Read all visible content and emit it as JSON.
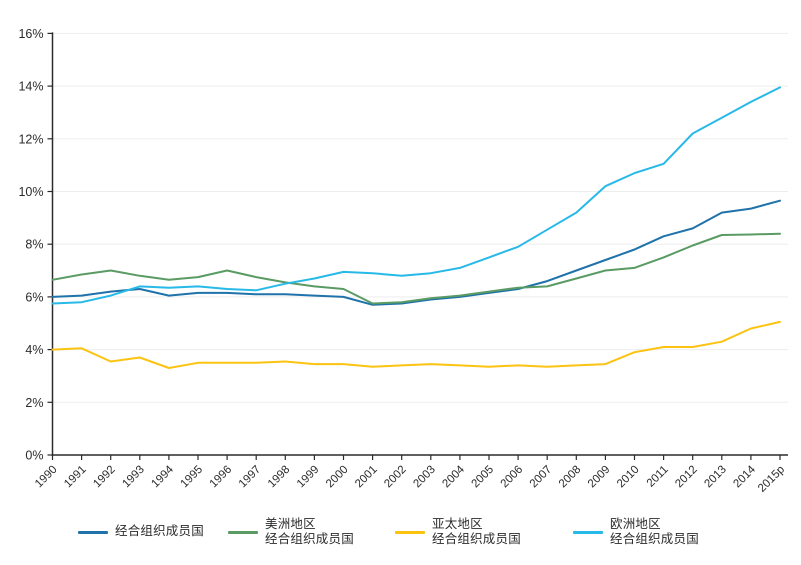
{
  "chart_data": {
    "type": "line",
    "title": "",
    "xlabel": "",
    "ylabel": "",
    "x": [
      "1990",
      "1991",
      "1992",
      "1993",
      "1994",
      "1995",
      "1996",
      "1997",
      "1998",
      "1999",
      "2000",
      "2001",
      "2002",
      "2003",
      "2004",
      "2005",
      "2006",
      "2007",
      "2008",
      "2009",
      "2010",
      "2011",
      "2012",
      "2013",
      "2014",
      "2015p"
    ],
    "ylim": [
      0,
      16
    ],
    "ytick_step": 2,
    "ytick_suffix": "%",
    "grid": "horizontal",
    "legend_position": "bottom",
    "axis_color": "#2b2b2b",
    "grid_color": "#ededed",
    "series": [
      {
        "name": "经合组织成员国",
        "color": "#1F72AA",
        "values": [
          6.0,
          6.05,
          6.2,
          6.3,
          6.05,
          6.15,
          6.15,
          6.1,
          6.1,
          6.05,
          6.0,
          5.7,
          5.75,
          5.9,
          6.0,
          6.15,
          6.3,
          6.6,
          7.0,
          7.4,
          7.8,
          8.3,
          8.6,
          9.2,
          9.35,
          9.65
        ]
      },
      {
        "name": "美洲地区经合组织成员国",
        "color": "#5A9B64",
        "values": [
          6.65,
          6.85,
          7.0,
          6.8,
          6.65,
          6.75,
          7.0,
          6.75,
          6.55,
          6.4,
          6.3,
          5.75,
          5.8,
          5.95,
          6.05,
          6.2,
          6.35,
          6.4,
          6.7,
          7.0,
          7.1,
          7.5,
          7.95,
          8.35,
          8.37,
          8.4
        ]
      },
      {
        "name": "亚太地区经合组织成员国",
        "color": "#FCC311",
        "values": [
          4.0,
          4.05,
          3.55,
          3.7,
          3.3,
          3.5,
          3.5,
          3.5,
          3.55,
          3.45,
          3.45,
          3.35,
          3.4,
          3.45,
          3.4,
          3.35,
          3.4,
          3.35,
          3.4,
          3.45,
          3.9,
          4.1,
          4.1,
          4.3,
          4.8,
          5.05
        ]
      },
      {
        "name": "欧洲地区经合组织成员国",
        "color": "#27B9E7",
        "values": [
          5.75,
          5.8,
          6.05,
          6.4,
          6.35,
          6.4,
          6.3,
          6.25,
          6.5,
          6.7,
          6.95,
          6.9,
          6.8,
          6.9,
          7.1,
          7.5,
          7.9,
          8.55,
          9.2,
          10.2,
          10.7,
          11.05,
          12.2,
          12.8,
          13.4,
          13.95
        ]
      }
    ]
  },
  "legend": {
    "items": [
      {
        "line1": "经合组织成员国",
        "line2": ""
      },
      {
        "line1": "美洲地区",
        "line2": "经合组织成员国"
      },
      {
        "line1": "亚太地区",
        "line2": "经合组织成员国"
      },
      {
        "line1": "欧洲地区",
        "line2": "经合组织成员国"
      }
    ]
  }
}
